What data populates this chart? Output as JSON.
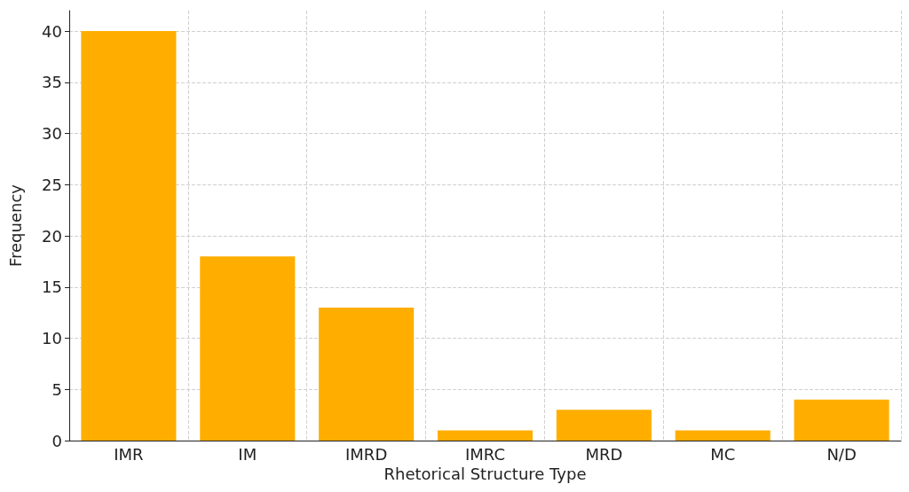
{
  "chart_data": {
    "type": "bar",
    "xlabel": "Rhetorical Structure Type",
    "ylabel": "Frequency",
    "categories": [
      "IMR",
      "IM",
      "IMRD",
      "IMRC",
      "MRD",
      "MC",
      "N/D"
    ],
    "values": [
      40,
      18,
      13,
      1,
      3,
      1,
      4
    ],
    "color": "#ffae00",
    "ylim": [
      0,
      42
    ],
    "yticks": [
      0,
      5,
      10,
      15,
      20,
      25,
      30,
      35,
      40
    ],
    "grid": true
  }
}
